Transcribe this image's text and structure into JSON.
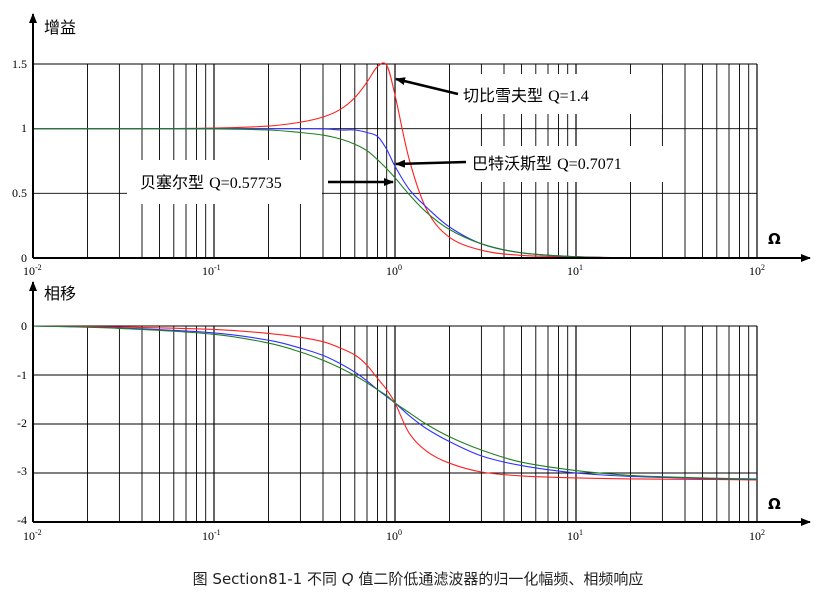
{
  "caption": {
    "prefix": "图 Section81-1 不同 ",
    "q": "Q",
    "suffix": " 值二阶低通滤波器的归一化幅频、相频响应"
  },
  "colors": {
    "chebyshev": "#ff2020",
    "butterworth": "#3030ff",
    "bessel": "#208020",
    "grid": "#000000",
    "axis": "#000000"
  },
  "chart_data": [
    {
      "type": "line",
      "ylabel": "增益",
      "xlabel": "Ω",
      "xscale": "log",
      "xlim": [
        0.01,
        100
      ],
      "ylim": [
        0,
        1.5
      ],
      "yticks": [
        "0",
        "0.5",
        "1",
        "1.5"
      ],
      "xticks": [
        {
          "base": "10",
          "exp": "-2"
        },
        {
          "base": "10",
          "exp": "-1"
        },
        {
          "base": "10",
          "exp": "0"
        },
        {
          "base": "10",
          "exp": "1"
        },
        {
          "base": "10",
          "exp": "2"
        }
      ],
      "grid": true,
      "x": [
        0.01,
        0.03,
        0.1,
        0.2,
        0.3,
        0.4,
        0.5,
        0.6,
        0.7,
        0.8,
        0.9,
        1.0,
        1.2,
        1.5,
        2,
        3,
        5,
        10,
        20,
        50,
        100
      ],
      "series": [
        {
          "key": "chebyshev",
          "q": 1.4,
          "values": [
            1.0,
            1.0,
            1.005,
            1.02,
            1.05,
            1.09,
            1.15,
            1.24,
            1.36,
            1.48,
            1.49,
            1.26,
            0.76,
            0.37,
            0.16,
            0.06,
            0.02,
            0.01,
            0.0,
            0.0,
            0.0
          ]
        },
        {
          "key": "butterworth",
          "q": 0.7071,
          "values": [
            1.0,
            1.0,
            1.0,
            1.0,
            1.0,
            0.999,
            0.99,
            0.99,
            0.97,
            0.94,
            0.84,
            0.71,
            0.53,
            0.39,
            0.24,
            0.11,
            0.04,
            0.01,
            0.0,
            0.0,
            0.0
          ]
        },
        {
          "key": "bessel",
          "q": 0.57735,
          "values": [
            1.0,
            1.0,
            0.998,
            0.99,
            0.97,
            0.95,
            0.92,
            0.88,
            0.83,
            0.76,
            0.69,
            0.62,
            0.49,
            0.35,
            0.22,
            0.11,
            0.04,
            0.01,
            0.0,
            0.0,
            0.0
          ]
        }
      ],
      "annotations": [
        {
          "key": "chebyshev",
          "name": "切比雪夫型",
          "qtext": "Q=1.4"
        },
        {
          "key": "butterworth",
          "name": "巴特沃斯型",
          "qtext": "Q=0.7071"
        },
        {
          "key": "bessel",
          "name": "贝塞尔型",
          "qtext": "Q=0.57735"
        }
      ]
    },
    {
      "type": "line",
      "ylabel": "相移",
      "xlabel": "Ω",
      "xscale": "log",
      "xlim": [
        0.01,
        100
      ],
      "ylim": [
        -4,
        0
      ],
      "yticks": [
        "0",
        "-1",
        "-2",
        "-3",
        "-4"
      ],
      "xticks": [
        {
          "base": "10",
          "exp": "-2"
        },
        {
          "base": "10",
          "exp": "-1"
        },
        {
          "base": "10",
          "exp": "0"
        },
        {
          "base": "10",
          "exp": "1"
        },
        {
          "base": "10",
          "exp": "2"
        }
      ],
      "grid": true,
      "x": [
        0.01,
        0.03,
        0.1,
        0.2,
        0.3,
        0.4,
        0.5,
        0.6,
        0.7,
        0.8,
        0.9,
        1.0,
        1.2,
        1.5,
        2,
        3,
        5,
        10,
        20,
        50,
        100
      ],
      "series": [
        {
          "key": "chebyshev",
          "values": [
            0.0,
            -0.02,
            -0.07,
            -0.15,
            -0.23,
            -0.32,
            -0.45,
            -0.59,
            -0.8,
            -1.07,
            -1.3,
            -1.57,
            -2.19,
            -2.56,
            -2.8,
            -2.98,
            -3.06,
            -3.1,
            -3.12,
            -3.13,
            -3.14
          ]
        },
        {
          "key": "butterworth",
          "values": [
            0.0,
            -0.04,
            -0.14,
            -0.29,
            -0.45,
            -0.6,
            -0.77,
            -0.94,
            -1.12,
            -1.3,
            -1.44,
            -1.57,
            -1.83,
            -2.1,
            -2.36,
            -2.65,
            -2.85,
            -3.0,
            -3.07,
            -3.11,
            -3.13
          ]
        },
        {
          "key": "bessel",
          "values": [
            0.0,
            -0.05,
            -0.17,
            -0.35,
            -0.53,
            -0.7,
            -0.86,
            -1.01,
            -1.16,
            -1.3,
            -1.42,
            -1.57,
            -1.77,
            -2.01,
            -2.26,
            -2.53,
            -2.78,
            -2.95,
            -3.05,
            -3.1,
            -3.12
          ]
        }
      ]
    }
  ]
}
